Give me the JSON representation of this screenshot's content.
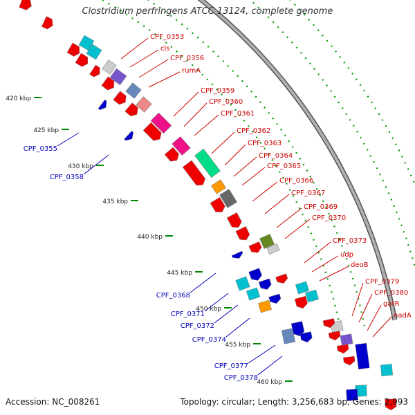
{
  "title": "Clostridium perfringens ATCC 13124, complete genome",
  "accession": "Accession: NC_008261",
  "topology": "Topology: circular; Length: 3,256,683 bp; Genes: 2,993",
  "colors": {
    "backbone": "#999999",
    "forward_label": "#cc0000",
    "reverse_label": "#0000bb",
    "tick_dots": "#009900"
  },
  "kbp_ticks": [
    "420 kbp",
    "425 kbp",
    "430 kbp",
    "435 kbp",
    "440 kbp",
    "445 kbp",
    "450 kbp",
    "455 kbp",
    "460 kbp"
  ],
  "forward_labels": [
    "CPF_0353",
    "cls",
    "CPF_0356",
    "rumA",
    "CPF_0359",
    "CPF_0360",
    "CPF_0361",
    "CPF_0362",
    "CPF_0363",
    "CPF_0364",
    "CPF_0365",
    "CPF_0366",
    "CPF_0367",
    "CPF_0369",
    "CPF_0370",
    "CPF_0373",
    "udp",
    "deoB",
    "CPF_0379",
    "CPF_0380",
    "garR",
    "nadA"
  ],
  "reverse_labels": [
    "CPF_0355",
    "CPF_0358",
    "CPF_0368",
    "CPF_0371",
    "CPF_0372",
    "CPF_0374",
    "CPF_0377",
    "CPF_0378"
  ]
}
